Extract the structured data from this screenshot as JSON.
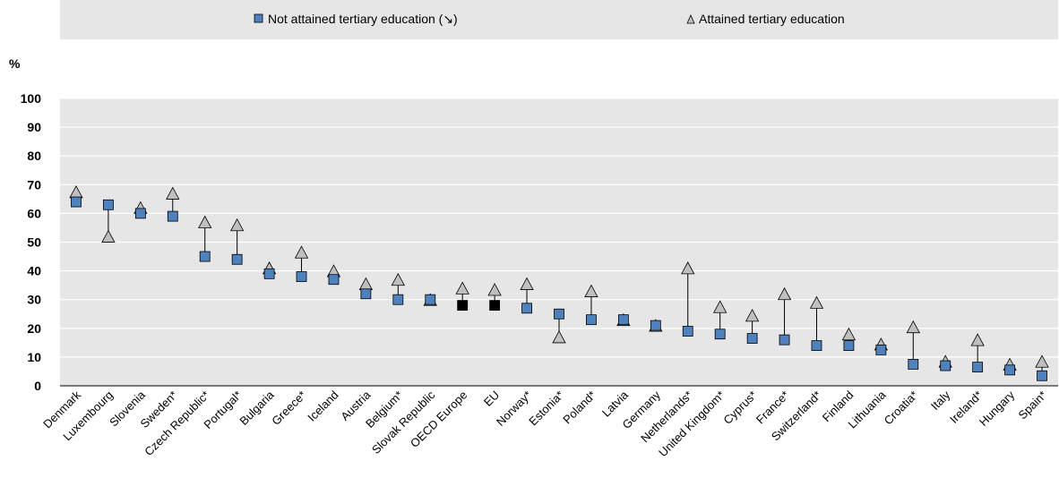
{
  "chart_data": {
    "type": "scatter",
    "unit_label": "%",
    "ylim": [
      0,
      100
    ],
    "yticks": [
      "0",
      "10",
      "20",
      "30",
      "40",
      "50",
      "60",
      "70",
      "80",
      "90",
      "100"
    ],
    "grid": true,
    "legend_placement": "top",
    "categories": [
      "Denmark",
      "Luxembourg",
      "Slovenia",
      "Sweden*",
      "Czech Republic*",
      "Portugal*",
      "Bulgaria",
      "Greece*",
      "Iceland",
      "Austria",
      "Belgium*",
      "Slovak Republic",
      "OECD Europe",
      "EU",
      "Norway*",
      "Estonia*",
      "Poland*",
      "Latvia",
      "Germany",
      "Netherlands*",
      "United Kingdom*",
      "Cyprus*",
      "France*",
      "Switzerland*",
      "Finland",
      "Lithuania",
      "Croatia*",
      "Italy",
      "Ireland*",
      "Hungary",
      "Spain*"
    ],
    "series": [
      {
        "name": "Not attained tertiary education (↘)",
        "marker": "square",
        "color": "#4f81bd",
        "highlight_color": "#000000",
        "highlight_categories": [
          "OECD Europe",
          "EU"
        ],
        "values": [
          64,
          63,
          60,
          59,
          45,
          44,
          39,
          38,
          37,
          32,
          30,
          30,
          28,
          28,
          27,
          25,
          23,
          23,
          21,
          19,
          18,
          16.5,
          16,
          14,
          14,
          12.5,
          7.5,
          7,
          6.5,
          5.5,
          3.5
        ]
      },
      {
        "name": "Attained tertiary education",
        "marker": "triangle",
        "color": "#bfbfbf",
        "values": [
          67.5,
          52,
          62,
          67,
          57,
          56,
          41,
          46.5,
          40,
          35.5,
          37,
          30,
          34,
          33.5,
          35.5,
          17,
          33,
          23,
          21,
          41,
          27.5,
          24.5,
          32,
          29,
          18,
          14.5,
          20.5,
          8.5,
          16,
          7.5,
          8.5
        ]
      }
    ]
  }
}
